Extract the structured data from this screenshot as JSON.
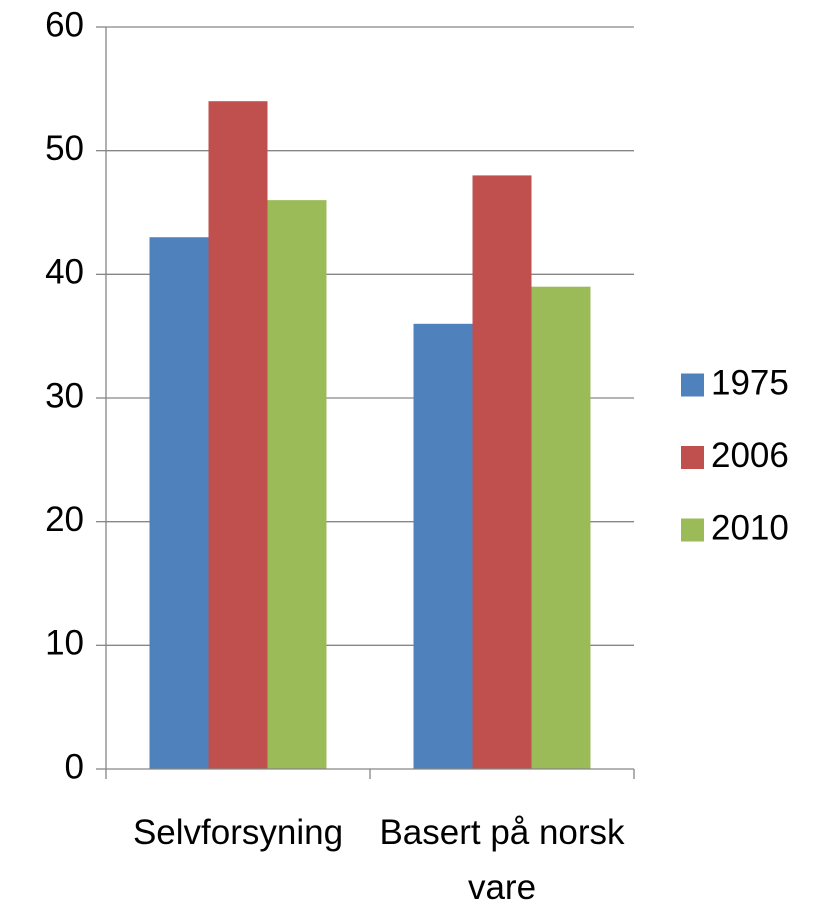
{
  "chart_data": {
    "type": "bar",
    "categories": [
      "Selvforsyning",
      "Basert på norsk vare"
    ],
    "series": [
      {
        "name": "1975",
        "color": "#4f81bd",
        "values": [
          43,
          36
        ]
      },
      {
        "name": "2006",
        "color": "#c0504d",
        "values": [
          54,
          48
        ]
      },
      {
        "name": "2010",
        "color": "#9bbb59",
        "values": [
          46,
          39
        ]
      }
    ],
    "ylim": [
      0,
      60
    ],
    "yticks": [
      0,
      10,
      20,
      30,
      40,
      50,
      60
    ],
    "grid": true,
    "legend": "right"
  }
}
